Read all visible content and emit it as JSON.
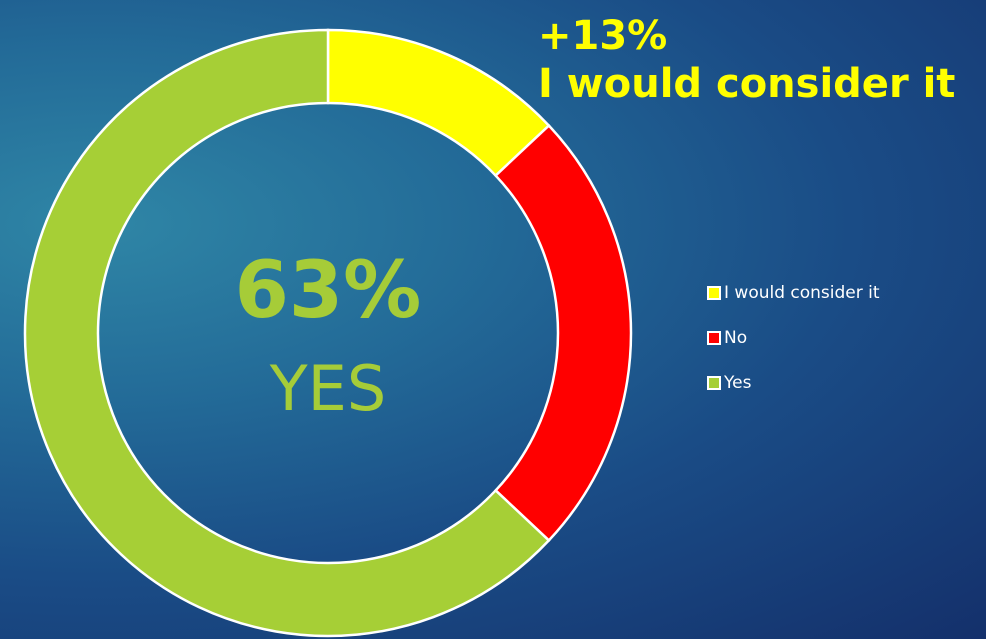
{
  "callout": {
    "line1": "+13%",
    "line2": "I would consider it"
  },
  "center": {
    "percent": "63%",
    "label": "YES"
  },
  "chart_data": {
    "type": "pie",
    "categories": [
      "I would consider it",
      "No",
      "Yes"
    ],
    "values": [
      13,
      24,
      63
    ],
    "colors": [
      "#ffff00",
      "#ff0000",
      "#a6cf36"
    ],
    "donut": true,
    "legend_position": "right"
  }
}
